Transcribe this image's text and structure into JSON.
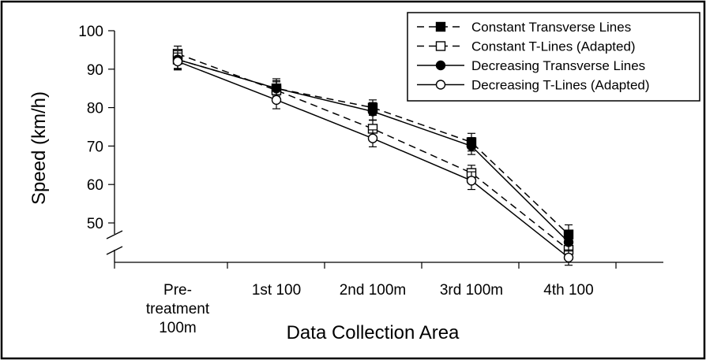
{
  "chart_data": {
    "type": "line",
    "title": "",
    "xlabel": "Data Collection Area",
    "ylabel": "Speed (km/h)",
    "ylim": [
      40,
      100
    ],
    "yticks": [
      50,
      60,
      70,
      80,
      90,
      100
    ],
    "axis_break": true,
    "grid": false,
    "legend": "top-right",
    "categories": [
      [
        "Pre-",
        "treatment",
        "100m"
      ],
      [
        "1st 100"
      ],
      [
        "2nd 100m"
      ],
      [
        "3rd 100m"
      ],
      [
        "4th 100"
      ]
    ],
    "series": [
      {
        "name": "Constant Transverse Lines",
        "values": [
          92.5,
          85,
          80,
          71,
          47
        ],
        "errors": [
          2.5,
          2,
          2,
          2.3,
          2.5
        ],
        "line": "dashed",
        "marker": "square",
        "fill": "filled"
      },
      {
        "name": "Constant T-Lines (Adapted)",
        "values": [
          94,
          84.5,
          74.5,
          63,
          43
        ],
        "errors": [
          2,
          2.2,
          2.3,
          2,
          2
        ],
        "line": "dashed",
        "marker": "square",
        "fill": "open"
      },
      {
        "name": "Decreasing Transverse Lines",
        "values": [
          92.5,
          85,
          79,
          70,
          45
        ],
        "errors": [
          2.3,
          2.5,
          2.3,
          2.2,
          2.3
        ],
        "line": "solid",
        "marker": "circle",
        "fill": "filled"
      },
      {
        "name": "Decreasing T-Lines (Adapted)",
        "values": [
          92,
          82,
          72,
          61,
          41
        ],
        "errors": [
          2.2,
          2.3,
          2.2,
          2.3,
          2
        ],
        "line": "solid",
        "marker": "circle",
        "fill": "open"
      }
    ]
  }
}
